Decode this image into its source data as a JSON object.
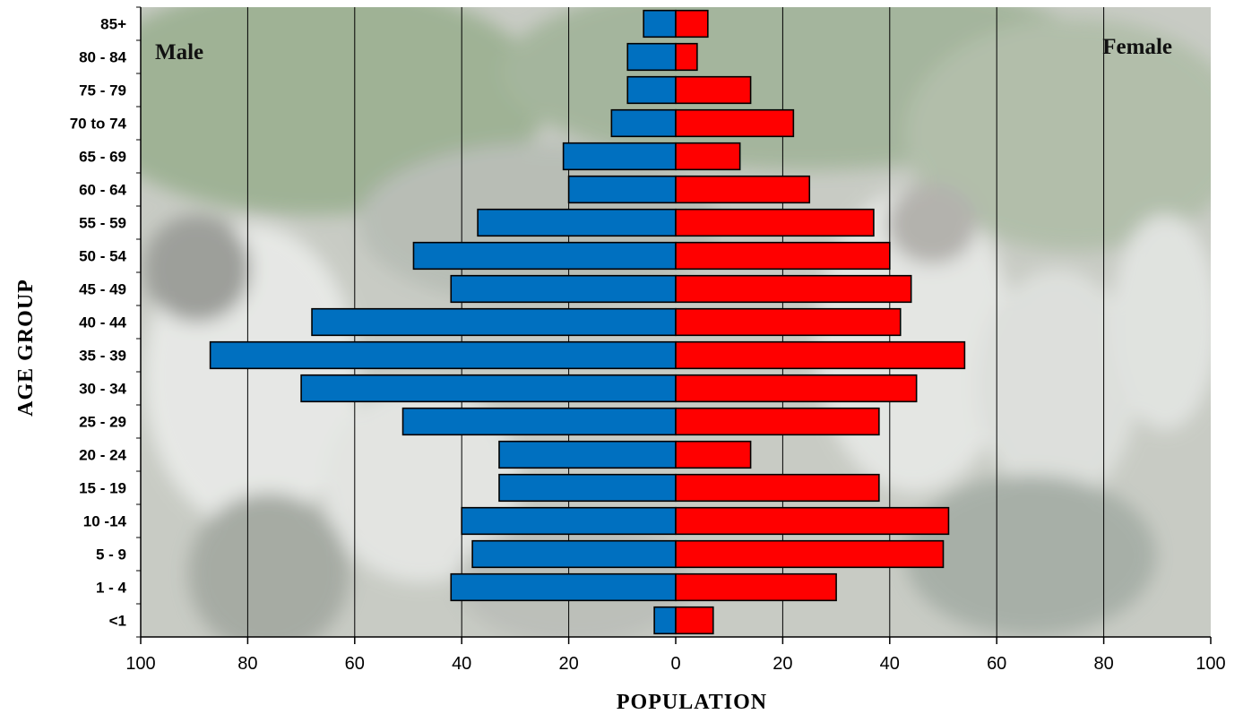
{
  "chart_data": {
    "type": "bar",
    "orientation": "horizontal",
    "subtype": "population-pyramid",
    "categories": [
      "85+",
      "80 - 84",
      "75 - 79",
      "70 to 74",
      "65 - 69",
      "60 - 64",
      "55 - 59",
      "50 - 54",
      "45 - 49",
      "40 - 44",
      "35 - 39",
      "30 - 34",
      "25 - 29",
      "20 - 24",
      "15 - 19",
      "10 -14",
      "5 - 9",
      "1 - 4",
      "<1"
    ],
    "series": [
      {
        "name": "Male",
        "side": "left",
        "color": "#0070c0",
        "values": [
          6,
          9,
          9,
          12,
          21,
          20,
          37,
          49,
          42,
          68,
          87,
          70,
          51,
          33,
          33,
          40,
          38,
          42,
          4
        ]
      },
      {
        "name": "Female",
        "side": "right",
        "color": "#ff0000",
        "values": [
          6,
          4,
          14,
          22,
          12,
          25,
          37,
          40,
          44,
          42,
          54,
          45,
          38,
          14,
          38,
          51,
          50,
          30,
          7
        ]
      }
    ],
    "xlabel": "POPULATION",
    "ylabel": "AGE GROUP",
    "xlim": [
      -100,
      100
    ],
    "xticks": [
      "100",
      "80",
      "60",
      "40",
      "20",
      "0",
      "20",
      "40",
      "60",
      "80",
      "100"
    ],
    "grid": true,
    "series_labels_placement": "inside-top-corners",
    "background": "faded photograph of students in school uniforms"
  }
}
